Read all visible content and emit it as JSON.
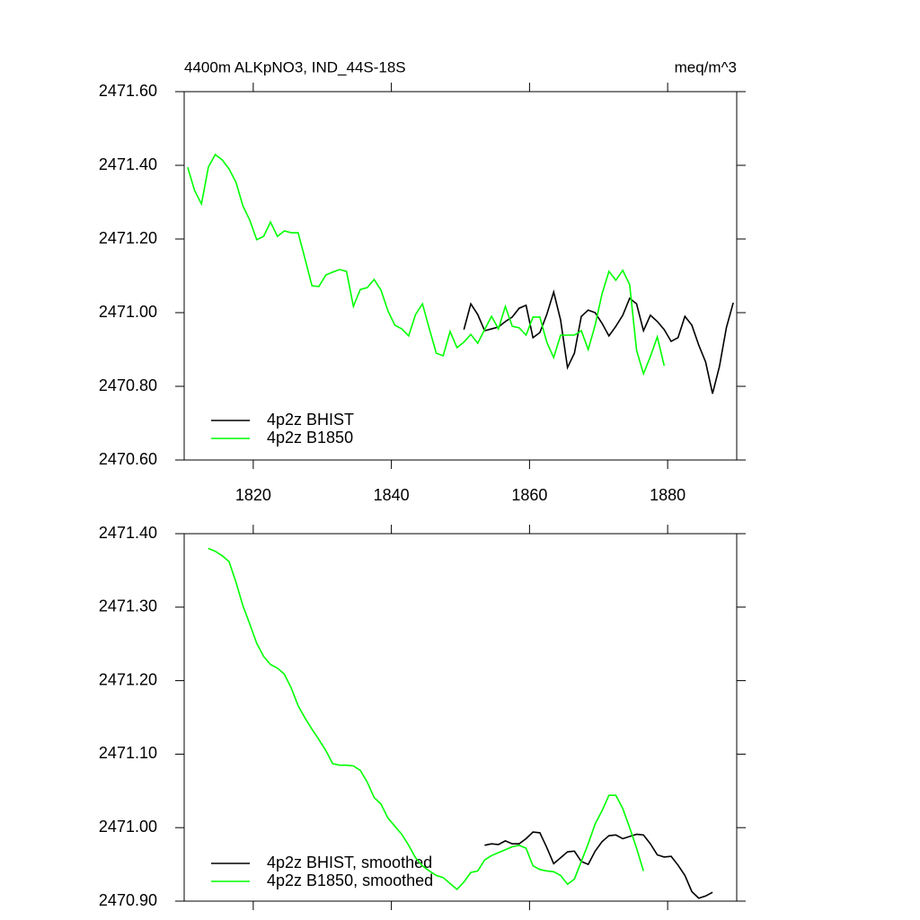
{
  "chart_data": [
    {
      "type": "line",
      "title": "4400m ALKpNO3, IND_44S-18S",
      "units": "meq/m^3",
      "xlim": [
        1810,
        1890
      ],
      "xticks": [
        1820,
        1840,
        1860,
        1880
      ],
      "ylim": [
        2470.6,
        2471.6
      ],
      "yticks": [
        {
          "value": 2470.6,
          "label": "2470.60"
        },
        {
          "value": 2470.8,
          "label": "2470.80"
        },
        {
          "value": 2471.0,
          "label": "2471.00"
        },
        {
          "value": 2471.2,
          "label": "2471.20"
        },
        {
          "value": 2471.4,
          "label": "2471.40"
        },
        {
          "value": 2471.6,
          "label": "2471.60"
        }
      ],
      "series": [
        {
          "name": "4p2z BHIST",
          "color": "#000000",
          "x": [
            1850.5,
            1851.5,
            1852.5,
            1853.5,
            1854.5,
            1855.5,
            1856.5,
            1857.5,
            1858.5,
            1859.5,
            1860.5,
            1861.5,
            1862.5,
            1863.5,
            1864.5,
            1865.5,
            1866.5,
            1867.5,
            1868.5,
            1869.5,
            1870.5,
            1871.5,
            1872.5,
            1873.5,
            1874.5,
            1875.5,
            1876.5,
            1877.5,
            1878.5,
            1879.5,
            1880.5,
            1881.5,
            1882.5,
            1883.5,
            1884.5,
            1885.5,
            1886.5,
            1887.5,
            1888.5,
            1889.5
          ],
          "values": [
            2470.954,
            2471.024,
            2470.995,
            2470.951,
            2470.956,
            2470.961,
            2470.976,
            2470.988,
            2471.012,
            2471.02,
            2470.932,
            2470.946,
            2470.995,
            2471.056,
            2470.98,
            2470.851,
            2470.89,
            2470.99,
            2471.007,
            2471.0,
            2470.971,
            2470.937,
            2470.963,
            2470.993,
            2471.039,
            2471.024,
            2470.951,
            2470.993,
            2470.976,
            2470.954,
            2470.922,
            2470.932,
            2470.99,
            2470.966,
            2470.912,
            2470.866,
            2470.78,
            2470.854,
            2470.959,
            2471.027
          ]
        },
        {
          "name": "4p2z B1850",
          "color": "#00ff00",
          "x": [
            1810.5,
            1811.5,
            1812.5,
            1813.5,
            1814.5,
            1815.5,
            1816.5,
            1817.5,
            1818.5,
            1819.5,
            1820.5,
            1821.5,
            1822.5,
            1823.5,
            1824.5,
            1825.5,
            1826.5,
            1827.5,
            1828.5,
            1829.5,
            1830.5,
            1831.5,
            1832.5,
            1833.5,
            1834.5,
            1835.5,
            1836.5,
            1837.5,
            1838.5,
            1839.5,
            1840.5,
            1841.5,
            1842.5,
            1843.5,
            1844.5,
            1845.5,
            1846.5,
            1847.5,
            1848.5,
            1849.5,
            1850.5,
            1851.5,
            1852.5,
            1853.5,
            1854.5,
            1855.5,
            1856.5,
            1857.5,
            1858.5,
            1859.5,
            1860.5,
            1861.5,
            1862.5,
            1863.5,
            1864.5,
            1865.5,
            1866.5,
            1867.5,
            1868.5,
            1869.5,
            1870.5,
            1871.5,
            1872.5,
            1873.5,
            1874.5,
            1875.5,
            1876.5,
            1877.5,
            1878.5,
            1879.5
          ],
          "values": [
            2471.395,
            2471.332,
            2471.295,
            2471.395,
            2471.429,
            2471.415,
            2471.39,
            2471.354,
            2471.29,
            2471.251,
            2471.198,
            2471.207,
            2471.246,
            2471.207,
            2471.222,
            2471.217,
            2471.217,
            2471.146,
            2471.073,
            2471.071,
            2471.102,
            2471.11,
            2471.117,
            2471.112,
            2471.017,
            2471.063,
            2471.068,
            2471.09,
            2471.061,
            2471.005,
            2470.966,
            2470.956,
            2470.937,
            2470.995,
            2471.024,
            2470.956,
            2470.89,
            2470.883,
            2470.949,
            2470.905,
            2470.92,
            2470.941,
            2470.917,
            2470.954,
            2470.99,
            2470.956,
            2471.017,
            2470.963,
            2470.959,
            2470.939,
            2470.988,
            2470.988,
            2470.92,
            2470.878,
            2470.939,
            2470.939,
            2470.939,
            2470.951,
            2470.9,
            2470.966,
            2471.051,
            2471.112,
            2471.088,
            2471.115,
            2471.076,
            2470.898,
            2470.834,
            2470.881,
            2470.934,
            2470.856
          ]
        }
      ]
    },
    {
      "type": "line",
      "xlim": [
        1810,
        1890
      ],
      "xticks": [
        1820,
        1840,
        1860,
        1880
      ],
      "ylim": [
        2470.9,
        2471.4
      ],
      "yticks": [
        {
          "value": 2470.9,
          "label": "2470.90"
        },
        {
          "value": 2471.0,
          "label": "2471.00"
        },
        {
          "value": 2471.1,
          "label": "2471.10"
        },
        {
          "value": 2471.2,
          "label": "2471.20"
        },
        {
          "value": 2471.3,
          "label": "2471.30"
        },
        {
          "value": 2471.4,
          "label": "2471.40"
        }
      ],
      "series": [
        {
          "name": "4p2z BHIST, smoothed",
          "color": "#000000",
          "x": [
            1853.5,
            1854.5,
            1855.5,
            1856.5,
            1857.5,
            1858.5,
            1859.5,
            1860.5,
            1861.5,
            1862.5,
            1863.5,
            1864.5,
            1865.5,
            1866.5,
            1867.5,
            1868.5,
            1869.5,
            1870.5,
            1871.5,
            1872.5,
            1873.5,
            1874.5,
            1875.5,
            1876.5,
            1877.5,
            1878.5,
            1879.5,
            1880.5,
            1881.5,
            1882.5,
            1883.5,
            1884.5,
            1885.5,
            1886.5
          ],
          "values": [
            2470.976,
            2470.978,
            2470.977,
            2470.982,
            2470.978,
            2470.978,
            2470.985,
            2470.994,
            2470.993,
            2470.973,
            2470.951,
            2470.959,
            2470.967,
            2470.968,
            2470.954,
            2470.95,
            2470.968,
            2470.981,
            2470.989,
            2470.99,
            2470.985,
            2470.988,
            2470.991,
            2470.99,
            2470.978,
            2470.963,
            2470.96,
            2470.961,
            2470.949,
            2470.935,
            2470.913,
            2470.904,
            2470.907,
            2470.912
          ]
        },
        {
          "name": "4p2z B1850, smoothed",
          "color": "#00ff00",
          "x": [
            1813.5,
            1814.5,
            1815.5,
            1816.5,
            1817.5,
            1818.5,
            1819.5,
            1820.5,
            1821.5,
            1822.5,
            1823.5,
            1824.5,
            1825.5,
            1826.5,
            1827.5,
            1828.5,
            1829.5,
            1830.5,
            1831.5,
            1832.5,
            1833.5,
            1834.5,
            1835.5,
            1836.5,
            1837.5,
            1838.5,
            1839.5,
            1840.5,
            1841.5,
            1842.5,
            1843.5,
            1844.5,
            1845.5,
            1846.5,
            1847.5,
            1848.5,
            1849.5,
            1850.5,
            1851.5,
            1852.5,
            1853.5,
            1854.5,
            1855.5,
            1856.5,
            1857.5,
            1858.5,
            1859.5,
            1860.5,
            1861.5,
            1862.5,
            1863.5,
            1864.5,
            1865.5,
            1866.5,
            1867.5,
            1868.5,
            1869.5,
            1870.5,
            1871.5,
            1872.5,
            1873.5,
            1874.5,
            1875.5,
            1876.5
          ],
          "values": [
            2471.38,
            2471.376,
            2471.37,
            2471.362,
            2471.334,
            2471.302,
            2471.277,
            2471.251,
            2471.233,
            2471.222,
            2471.217,
            2471.209,
            2471.19,
            2471.166,
            2471.149,
            2471.134,
            2471.12,
            2471.105,
            2471.087,
            2471.085,
            2471.085,
            2471.084,
            2471.078,
            2471.062,
            2471.041,
            2471.032,
            2471.013,
            2471.002,
            2470.991,
            2470.976,
            2470.959,
            2470.948,
            2470.941,
            2470.935,
            2470.932,
            2470.924,
            2470.916,
            2470.926,
            2470.939,
            2470.941,
            2470.956,
            2470.962,
            2470.966,
            2470.97,
            2470.974,
            2470.976,
            2470.972,
            2470.948,
            2470.943,
            2470.941,
            2470.94,
            2470.935,
            2470.923,
            2470.93,
            2470.954,
            2470.978,
            2471.005,
            2471.023,
            2471.044,
            2471.044,
            2471.026,
            2471.0,
            2470.972,
            2470.941
          ]
        }
      ]
    }
  ]
}
